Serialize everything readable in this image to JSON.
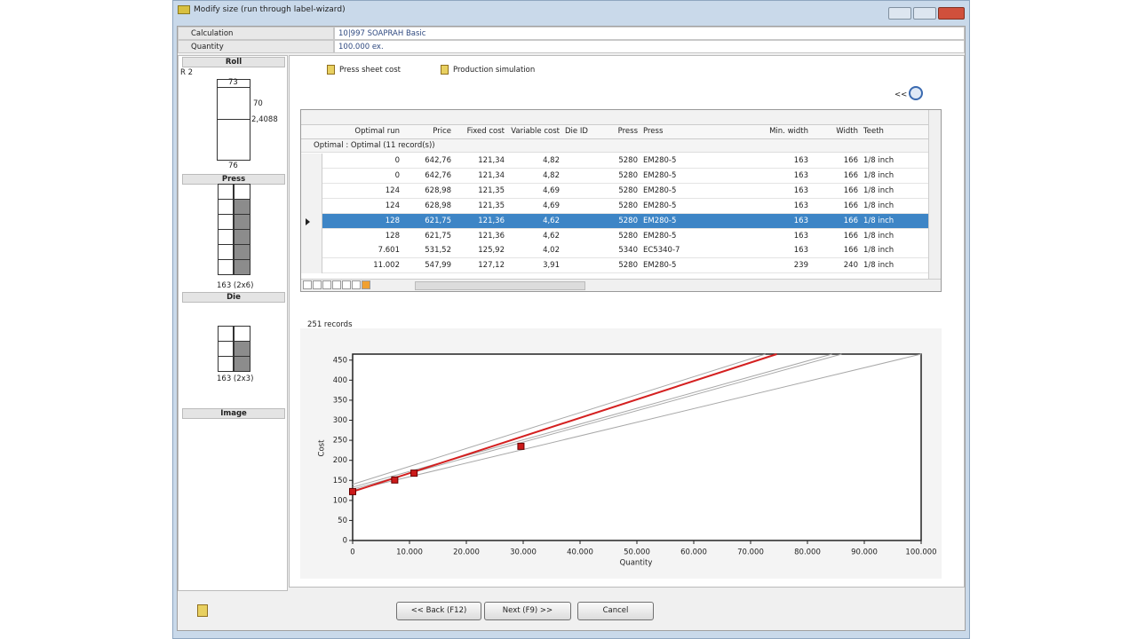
{
  "window": {
    "title": "Modify size (run through label-wizard)"
  },
  "info": {
    "rows": [
      [
        "Calculation",
        "10|997 SOAPRAH Basic"
      ],
      [
        "Quantity",
        "100.000 ex."
      ]
    ]
  },
  "left_panel": {
    "roll": {
      "title": "Roll",
      "label": "R 2",
      "top": "73",
      "side": "70",
      "height": "2,4088",
      "bottom": "76"
    },
    "press": {
      "title": "Press",
      "caption": "163 (2x6)"
    },
    "die": {
      "title": "Die",
      "caption": "163 (2x3)"
    },
    "image": {
      "title": "Image"
    }
  },
  "tabs": [
    "Press sheet cost",
    "Production simulation"
  ],
  "collapse": "<<",
  "table": {
    "columns": [
      "Optimal run",
      "Price",
      "Fixed cost",
      "Variable cost",
      "Die ID",
      "Press",
      "Press",
      "Min. width",
      "Width",
      "Teeth"
    ],
    "group": "Optimal : Optimal (11 record(s))",
    "selected_row": 4,
    "rows": [
      [
        "0",
        "642,76",
        "121,34",
        "4,82",
        null,
        "5280",
        "EM280-5",
        "163",
        "166",
        "1/8 inch"
      ],
      [
        "0",
        "642,76",
        "121,34",
        "4,82",
        null,
        "5280",
        "EM280-5",
        "163",
        "166",
        "1/8 inch"
      ],
      [
        "124",
        "628,98",
        "121,35",
        "4,69",
        null,
        "5280",
        "EM280-5",
        "163",
        "166",
        "1/8 inch"
      ],
      [
        "124",
        "628,98",
        "121,35",
        "4,69",
        null,
        "5280",
        "EM280-5",
        "163",
        "166",
        "1/8 inch"
      ],
      [
        "128",
        "621,75",
        "121,36",
        "4,62",
        null,
        "5280",
        "EM280-5",
        "163",
        "166",
        "1/8 inch"
      ],
      [
        "128",
        "621,75",
        "121,36",
        "4,62",
        null,
        "5280",
        "EM280-5",
        "163",
        "166",
        "1/8 inch"
      ],
      [
        "7.601",
        "531,52",
        "125,92",
        "4,02",
        null,
        "5340",
        "EC5340-7",
        "163",
        "166",
        "1/8 inch"
      ],
      [
        "11.002",
        "547,99",
        "127,12",
        "3,91",
        null,
        "5280",
        "EM280-5",
        "239",
        "240",
        "1/8 inch"
      ]
    ]
  },
  "records": "251 records",
  "chart": {
    "type": "line",
    "xlabel": "Quantity",
    "ylabel": "Cost",
    "xlim": [
      0,
      100000
    ],
    "ylim": [
      0,
      465
    ],
    "xticks": [
      0,
      {
        "value": 10000,
        "label": "10.000"
      },
      {
        "value": 20000,
        "label": "20.000"
      },
      {
        "value": 30000,
        "label": "30.000"
      },
      {
        "value": 40000,
        "label": "40.000"
      },
      {
        "value": 50000,
        "label": "50.000"
      },
      {
        "value": 60000,
        "label": "60.000"
      },
      {
        "value": 70000,
        "label": "70.000"
      },
      {
        "value": 80000,
        "label": "80.000"
      },
      {
        "value": 90000,
        "label": "90.000"
      },
      {
        "value": 100000,
        "label": "100.000"
      }
    ],
    "yticks": [
      0,
      50,
      100,
      150,
      200,
      250,
      300,
      350,
      400,
      450
    ],
    "series": [
      {
        "color": "#a8a8a8",
        "x": [
          0,
          72600
        ],
        "values": [
          140,
          465
        ]
      },
      {
        "color": "#a8a8a8",
        "x": [
          0,
          84300
        ],
        "values": [
          133,
          465
        ]
      },
      {
        "color": "#a8a8a8",
        "x": [
          0,
          86000
        ],
        "values": [
          128,
          465
        ]
      },
      {
        "color": "#a8a8a8",
        "x": [
          0,
          100000
        ],
        "values": [
          125,
          465
        ]
      },
      {
        "color": "#d42020",
        "x": [
          0,
          74600
        ],
        "values": [
          122,
          465
        ]
      }
    ],
    "markers": {
      "color": "#cc1a1a",
      "x": [
        0,
        7400,
        10800,
        29600
      ],
      "values": [
        122,
        151,
        168,
        235
      ]
    }
  },
  "buttons": [
    "<< Back (F12)",
    "Next (F9) >>",
    "Cancel"
  ]
}
